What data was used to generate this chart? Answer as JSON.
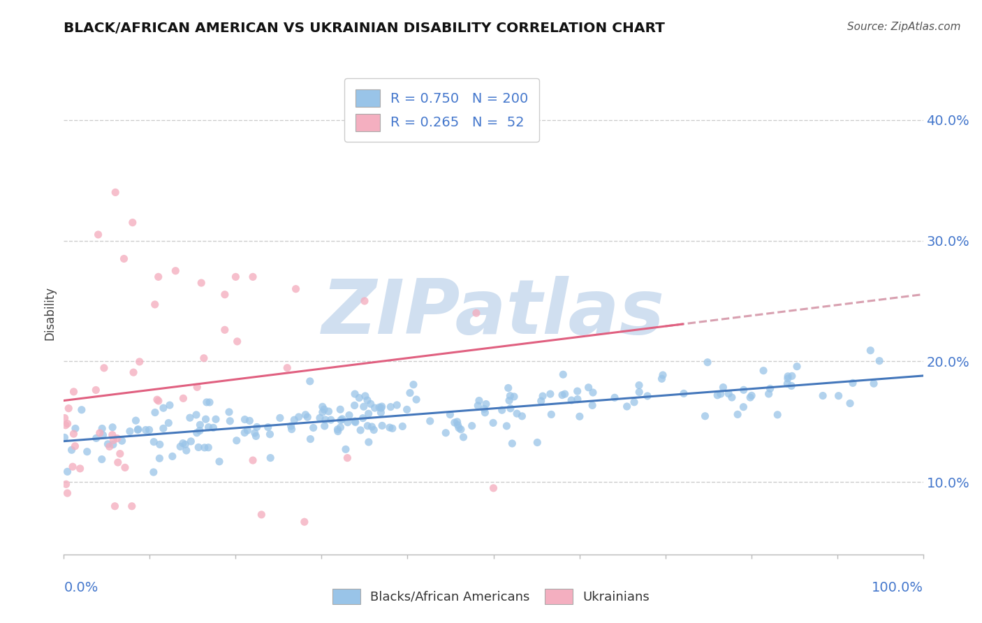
{
  "title": "BLACK/AFRICAN AMERICAN VS UKRAINIAN DISABILITY CORRELATION CHART",
  "source": "Source: ZipAtlas.com",
  "ylabel": "Disability",
  "blue_R": 0.75,
  "blue_N": 200,
  "pink_R": 0.265,
  "pink_N": 52,
  "blue_color": "#99c4e8",
  "pink_color": "#f4afc0",
  "blue_trend_color": "#4477bb",
  "pink_trend_color": "#e06080",
  "dashed_line_color": "#d8a0b0",
  "watermark_color": "#d0dff0",
  "legend_blue_label": "Blacks/African Americans",
  "legend_pink_label": "Ukrainians",
  "background_color": "#ffffff",
  "grid_color": "#cccccc",
  "title_color": "#111111",
  "axis_label_color": "#4477cc",
  "y_ticks": [
    0.1,
    0.2,
    0.3,
    0.4
  ],
  "y_lim": [
    0.04,
    0.44
  ],
  "x_lim": [
    0.0,
    1.0
  ],
  "seed": 77
}
